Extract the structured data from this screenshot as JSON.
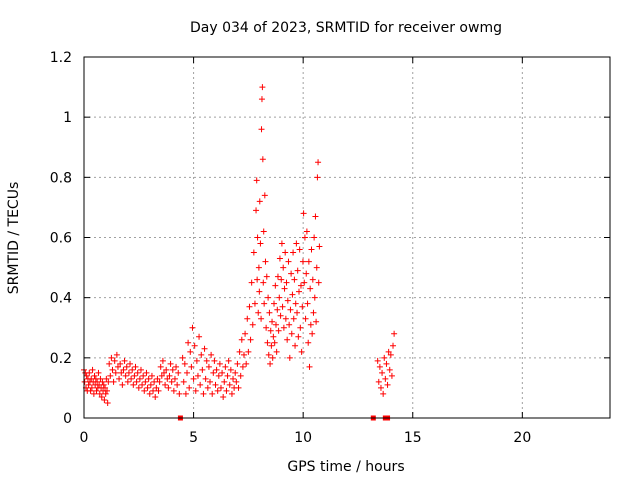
{
  "chart_data": {
    "type": "scatter",
    "title": "Day 034 of 2023, SRMTID for receiver owmg",
    "xlabel": "GPS time / hours",
    "ylabel": "SRMTID / TECUs",
    "xlim": [
      0,
      24
    ],
    "ylim": [
      0,
      1.2
    ],
    "xticks": [
      0,
      5,
      10,
      15,
      20
    ],
    "yticks": [
      0,
      0.2,
      0.4,
      0.6,
      0.8,
      1,
      1.2
    ],
    "ytick_labels": [
      "0",
      "0.2",
      "0.4",
      "0.6",
      "0.8",
      "1",
      "1.2"
    ],
    "grid": true,
    "marker": "plus",
    "color": "#ff0000",
    "series": [
      {
        "name": "SRMTID",
        "points": [
          [
            0.0,
            0.16
          ],
          [
            0.03,
            0.12
          ],
          [
            0.06,
            0.15
          ],
          [
            0.09,
            0.1
          ],
          [
            0.12,
            0.14
          ],
          [
            0.15,
            0.09
          ],
          [
            0.18,
            0.13
          ],
          [
            0.21,
            0.11
          ],
          [
            0.24,
            0.15
          ],
          [
            0.27,
            0.12
          ],
          [
            0.3,
            0.09
          ],
          [
            0.33,
            0.13
          ],
          [
            0.36,
            0.1
          ],
          [
            0.39,
            0.16
          ],
          [
            0.42,
            0.12
          ],
          [
            0.45,
            0.08
          ],
          [
            0.48,
            0.14
          ],
          [
            0.51,
            0.11
          ],
          [
            0.54,
            0.13
          ],
          [
            0.57,
            0.09
          ],
          [
            0.6,
            0.12
          ],
          [
            0.63,
            0.1
          ],
          [
            0.66,
            0.15
          ],
          [
            0.69,
            0.11
          ],
          [
            0.72,
            0.08
          ],
          [
            0.75,
            0.13
          ],
          [
            0.78,
            0.1
          ],
          [
            0.81,
            0.07
          ],
          [
            0.84,
            0.12
          ],
          [
            0.87,
            0.09
          ],
          [
            0.9,
            0.11
          ],
          [
            0.93,
            0.06
          ],
          [
            0.96,
            0.1
          ],
          [
            0.99,
            0.08
          ],
          [
            1.02,
            0.13
          ],
          [
            1.05,
            0.09
          ],
          [
            1.08,
            0.05
          ],
          [
            1.11,
            0.12
          ],
          [
            1.15,
            0.18
          ],
          [
            1.2,
            0.14
          ],
          [
            1.25,
            0.2
          ],
          [
            1.3,
            0.16
          ],
          [
            1.35,
            0.12
          ],
          [
            1.4,
            0.19
          ],
          [
            1.45,
            0.15
          ],
          [
            1.5,
            0.21
          ],
          [
            1.55,
            0.17
          ],
          [
            1.6,
            0.13
          ],
          [
            1.65,
            0.18
          ],
          [
            1.7,
            0.15
          ],
          [
            1.75,
            0.11
          ],
          [
            1.8,
            0.16
          ],
          [
            1.85,
            0.19
          ],
          [
            1.9,
            0.14
          ],
          [
            1.95,
            0.17
          ],
          [
            2.0,
            0.12
          ],
          [
            2.05,
            0.15
          ],
          [
            2.1,
            0.18
          ],
          [
            2.15,
            0.13
          ],
          [
            2.2,
            0.16
          ],
          [
            2.25,
            0.11
          ],
          [
            2.3,
            0.14
          ],
          [
            2.35,
            0.17
          ],
          [
            2.4,
            0.12
          ],
          [
            2.45,
            0.15
          ],
          [
            2.5,
            0.1
          ],
          [
            2.55,
            0.13
          ],
          [
            2.6,
            0.16
          ],
          [
            2.65,
            0.11
          ],
          [
            2.7,
            0.14
          ],
          [
            2.75,
            0.09
          ],
          [
            2.8,
            0.12
          ],
          [
            2.85,
            0.15
          ],
          [
            2.9,
            0.1
          ],
          [
            2.95,
            0.13
          ],
          [
            3.0,
            0.08
          ],
          [
            3.05,
            0.11
          ],
          [
            3.1,
            0.14
          ],
          [
            3.15,
            0.09
          ],
          [
            3.2,
            0.12
          ],
          [
            3.25,
            0.07
          ],
          [
            3.3,
            0.1
          ],
          [
            3.35,
            0.13
          ],
          [
            3.4,
            0.09
          ],
          [
            3.45,
            0.12
          ],
          [
            3.5,
            0.17
          ],
          [
            3.55,
            0.14
          ],
          [
            3.6,
            0.19
          ],
          [
            3.65,
            0.15
          ],
          [
            3.7,
            0.11
          ],
          [
            3.75,
            0.16
          ],
          [
            3.8,
            0.13
          ],
          [
            3.85,
            0.1
          ],
          [
            3.9,
            0.14
          ],
          [
            3.95,
            0.18
          ],
          [
            4.0,
            0.12
          ],
          [
            4.05,
            0.16
          ],
          [
            4.1,
            0.09
          ],
          [
            4.15,
            0.13
          ],
          [
            4.2,
            0.17
          ],
          [
            4.25,
            0.11
          ],
          [
            4.3,
            0.15
          ],
          [
            4.35,
            0.08
          ],
          [
            4.5,
            0.2
          ],
          [
            4.55,
            0.12
          ],
          [
            4.6,
            0.18
          ],
          [
            4.65,
            0.08
          ],
          [
            4.7,
            0.15
          ],
          [
            4.75,
            0.25
          ],
          [
            4.8,
            0.1
          ],
          [
            4.85,
            0.22
          ],
          [
            4.9,
            0.17
          ],
          [
            4.95,
            0.3
          ],
          [
            5.0,
            0.13
          ],
          [
            5.05,
            0.24
          ],
          [
            5.1,
            0.09
          ],
          [
            5.15,
            0.19
          ],
          [
            5.2,
            0.14
          ],
          [
            5.25,
            0.27
          ],
          [
            5.3,
            0.11
          ],
          [
            5.35,
            0.21
          ],
          [
            5.4,
            0.16
          ],
          [
            5.45,
            0.08
          ],
          [
            5.5,
            0.23
          ],
          [
            5.55,
            0.13
          ],
          [
            5.6,
            0.19
          ],
          [
            5.65,
            0.1
          ],
          [
            5.7,
            0.17
          ],
          [
            5.75,
            0.12
          ],
          [
            5.8,
            0.21
          ],
          [
            5.85,
            0.08
          ],
          [
            5.9,
            0.15
          ],
          [
            5.95,
            0.19
          ],
          [
            6.0,
            0.11
          ],
          [
            6.05,
            0.16
          ],
          [
            6.1,
            0.09
          ],
          [
            6.15,
            0.14
          ],
          [
            6.2,
            0.18
          ],
          [
            6.25,
            0.1
          ],
          [
            6.3,
            0.15
          ],
          [
            6.35,
            0.07
          ],
          [
            6.4,
            0.12
          ],
          [
            6.45,
            0.17
          ],
          [
            6.5,
            0.09
          ],
          [
            6.55,
            0.14
          ],
          [
            6.6,
            0.19
          ],
          [
            6.65,
            0.11
          ],
          [
            6.7,
            0.16
          ],
          [
            6.75,
            0.08
          ],
          [
            6.8,
            0.13
          ],
          [
            6.85,
            0.1
          ],
          [
            6.9,
            0.15
          ],
          [
            6.95,
            0.12
          ],
          [
            7.0,
            0.18
          ],
          [
            7.05,
            0.1
          ],
          [
            7.1,
            0.22
          ],
          [
            7.15,
            0.14
          ],
          [
            7.2,
            0.26
          ],
          [
            7.25,
            0.17
          ],
          [
            7.3,
            0.21
          ],
          [
            7.35,
            0.28
          ],
          [
            7.4,
            0.18
          ],
          [
            7.45,
            0.33
          ],
          [
            7.5,
            0.22
          ],
          [
            7.55,
            0.37
          ],
          [
            7.6,
            0.26
          ],
          [
            7.65,
            0.45
          ],
          [
            7.7,
            0.31
          ],
          [
            7.75,
            0.55
          ],
          [
            7.8,
            0.38
          ],
          [
            7.85,
            0.69
          ],
          [
            7.88,
            0.79
          ],
          [
            7.9,
            0.46
          ],
          [
            7.92,
            0.6
          ],
          [
            7.95,
            0.35
          ],
          [
            7.98,
            0.5
          ],
          [
            8.0,
            0.42
          ],
          [
            8.02,
            0.72
          ],
          [
            8.05,
            0.58
          ],
          [
            8.08,
            0.33
          ],
          [
            8.1,
            0.96
          ],
          [
            8.12,
            1.06
          ],
          [
            8.14,
            1.1
          ],
          [
            8.16,
            0.86
          ],
          [
            8.18,
            0.45
          ],
          [
            8.2,
            0.62
          ],
          [
            8.22,
            0.38
          ],
          [
            8.25,
            0.74
          ],
          [
            8.28,
            0.52
          ],
          [
            8.31,
            0.3
          ],
          [
            8.34,
            0.47
          ],
          [
            8.37,
            0.25
          ],
          [
            8.4,
            0.4
          ],
          [
            8.43,
            0.21
          ],
          [
            8.46,
            0.35
          ],
          [
            8.49,
            0.18
          ],
          [
            8.52,
            0.29
          ],
          [
            8.55,
            0.24
          ],
          [
            8.58,
            0.32
          ],
          [
            8.61,
            0.2
          ],
          [
            8.64,
            0.27
          ],
          [
            8.67,
            0.38
          ],
          [
            8.7,
            0.25
          ],
          [
            8.73,
            0.44
          ],
          [
            8.76,
            0.31
          ],
          [
            8.79,
            0.22
          ],
          [
            8.82,
            0.36
          ],
          [
            8.85,
            0.47
          ],
          [
            8.88,
            0.29
          ],
          [
            8.91,
            0.4
          ],
          [
            8.94,
            0.53
          ],
          [
            8.97,
            0.34
          ],
          [
            9.0,
            0.46
          ],
          [
            9.03,
            0.58
          ],
          [
            9.06,
            0.37
          ],
          [
            9.09,
            0.5
          ],
          [
            9.12,
            0.3
          ],
          [
            9.15,
            0.43
          ],
          [
            9.18,
            0.55
          ],
          [
            9.21,
            0.33
          ],
          [
            9.24,
            0.45
          ],
          [
            9.27,
            0.26
          ],
          [
            9.3,
            0.39
          ],
          [
            9.33,
            0.52
          ],
          [
            9.36,
            0.31
          ],
          [
            9.39,
            0.2
          ],
          [
            9.42,
            0.36
          ],
          [
            9.45,
            0.48
          ],
          [
            9.48,
            0.28
          ],
          [
            9.51,
            0.41
          ],
          [
            9.54,
            0.55
          ],
          [
            9.57,
            0.33
          ],
          [
            9.6,
            0.46
          ],
          [
            9.63,
            0.24
          ],
          [
            9.66,
            0.38
          ],
          [
            9.69,
            0.58
          ],
          [
            9.72,
            0.35
          ],
          [
            9.75,
            0.49
          ],
          [
            9.78,
            0.27
          ],
          [
            9.81,
            0.42
          ],
          [
            9.84,
            0.56
          ],
          [
            9.87,
            0.3
          ],
          [
            9.9,
            0.44
          ],
          [
            9.93,
            0.22
          ],
          [
            9.96,
            0.37
          ],
          [
            9.99,
            0.52
          ],
          [
            10.02,
            0.68
          ],
          [
            10.05,
            0.45
          ],
          [
            10.08,
            0.6
          ],
          [
            10.11,
            0.33
          ],
          [
            10.14,
            0.48
          ],
          [
            10.17,
            0.62
          ],
          [
            10.2,
            0.38
          ],
          [
            10.23,
            0.25
          ],
          [
            10.26,
            0.52
          ],
          [
            10.29,
            0.17
          ],
          [
            10.32,
            0.43
          ],
          [
            10.35,
            0.31
          ],
          [
            10.38,
            0.56
          ],
          [
            10.41,
            0.28
          ],
          [
            10.44,
            0.46
          ],
          [
            10.47,
            0.35
          ],
          [
            10.5,
            0.6
          ],
          [
            10.53,
            0.4
          ],
          [
            10.56,
            0.67
          ],
          [
            10.59,
            0.32
          ],
          [
            10.62,
            0.5
          ],
          [
            10.65,
            0.8
          ],
          [
            10.68,
            0.85
          ],
          [
            10.71,
            0.45
          ],
          [
            10.74,
            0.57
          ],
          [
            13.4,
            0.19
          ],
          [
            13.45,
            0.12
          ],
          [
            13.5,
            0.17
          ],
          [
            13.55,
            0.1
          ],
          [
            13.6,
            0.15
          ],
          [
            13.65,
            0.08
          ],
          [
            13.7,
            0.2
          ],
          [
            13.75,
            0.13
          ],
          [
            13.8,
            0.18
          ],
          [
            13.85,
            0.11
          ],
          [
            13.9,
            0.22
          ],
          [
            13.95,
            0.16
          ],
          [
            14.0,
            0.21
          ],
          [
            14.05,
            0.14
          ],
          [
            14.1,
            0.24
          ],
          [
            14.15,
            0.28
          ]
        ]
      }
    ],
    "zero_markers": [
      4.4,
      13.2,
      13.75,
      13.85
    ]
  }
}
